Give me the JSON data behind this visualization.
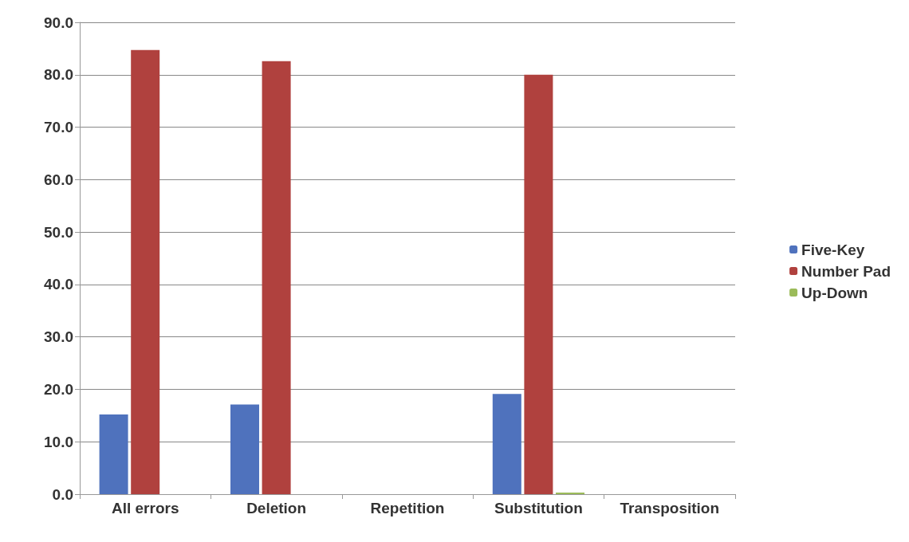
{
  "chart_data": {
    "type": "bar",
    "categories": [
      "All errors",
      "Deletion",
      "Repetition",
      "Substitution",
      "Transposition"
    ],
    "series": [
      {
        "name": "Five-Key",
        "color": "#4f72bd",
        "values": [
          15.2,
          17.1,
          0,
          19.1,
          0
        ]
      },
      {
        "name": "Number Pad",
        "color": "#b0413e",
        "values": [
          84.7,
          82.6,
          0,
          80.0,
          0
        ]
      },
      {
        "name": "Up-Down",
        "color": "#9bbb59",
        "values": [
          0,
          0,
          0,
          0.3,
          0
        ]
      }
    ],
    "ylim": [
      0,
      90
    ],
    "yticks": [
      {
        "value": 0,
        "label": "0.0"
      },
      {
        "value": 10,
        "label": "10.0"
      },
      {
        "value": 20,
        "label": "20.0"
      },
      {
        "value": 30,
        "label": "30.0"
      },
      {
        "value": 40,
        "label": "40.0"
      },
      {
        "value": 50,
        "label": "50.0"
      },
      {
        "value": 60,
        "label": "60.0"
      },
      {
        "value": 70,
        "label": "70.0"
      },
      {
        "value": 80,
        "label": "80.0"
      },
      {
        "value": 90,
        "label": "90.0"
      }
    ],
    "grid": "y",
    "legend": "right"
  }
}
